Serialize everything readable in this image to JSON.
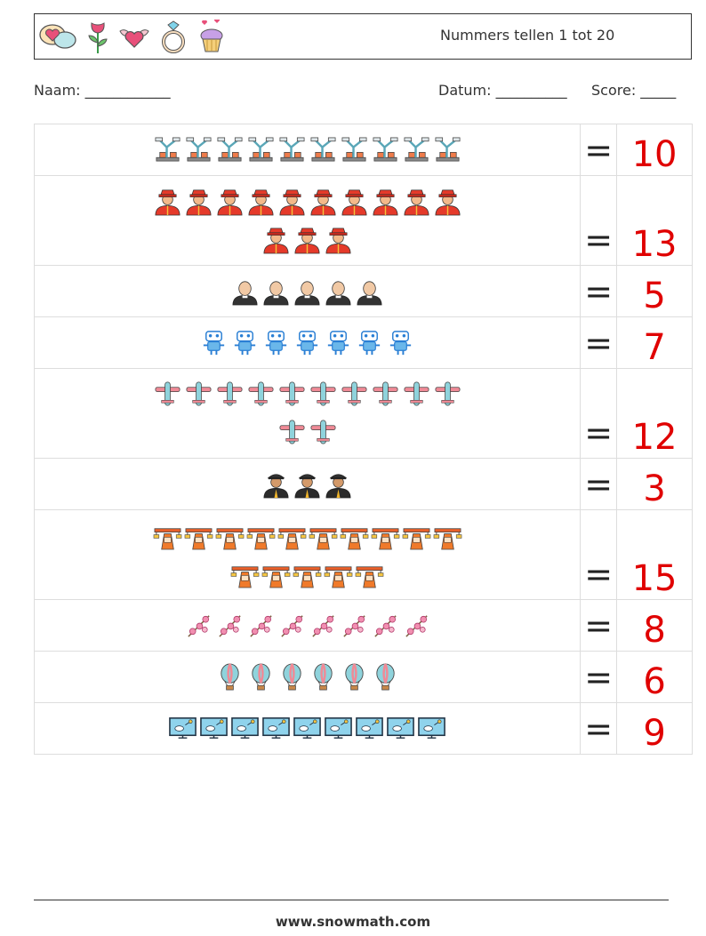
{
  "header": {
    "title": "Nummers tellen 1 tot 20",
    "icons": [
      "speech-bubbles-heart-icon",
      "rose-icon",
      "winged-heart-icon",
      "diamond-ring-icon",
      "heart-cupcake-icon"
    ]
  },
  "fields": {
    "name": "Naam: ____________",
    "date": "Datum: __________",
    "score": "Score: _____"
  },
  "colors": {
    "answer": "#e00000"
  },
  "rows": [
    {
      "icon": "robot-arm-icon",
      "count": 10,
      "equals": "=",
      "answer": "10"
    },
    {
      "icon": "firefighter-icon",
      "count": 13,
      "equals": "=",
      "answer": "13"
    },
    {
      "icon": "priest-icon",
      "count": 5,
      "equals": "=",
      "answer": "5"
    },
    {
      "icon": "robot-icon",
      "count": 7,
      "equals": "=",
      "answer": "7"
    },
    {
      "icon": "airplane-icon",
      "count": 12,
      "equals": "=",
      "answer": "12"
    },
    {
      "icon": "pilot-icon",
      "count": 3,
      "equals": "=",
      "answer": "3"
    },
    {
      "icon": "shipping-crane-icon",
      "count": 15,
      "equals": "=",
      "answer": "15"
    },
    {
      "icon": "flower-branch-icon",
      "count": 8,
      "equals": "=",
      "answer": "8"
    },
    {
      "icon": "hot-air-balloon-icon",
      "count": 6,
      "equals": "=",
      "answer": "6"
    },
    {
      "icon": "drone-monitor-icon",
      "count": 9,
      "equals": "=",
      "answer": "9"
    }
  ],
  "footer": {
    "website": "www.snowmath.com"
  }
}
